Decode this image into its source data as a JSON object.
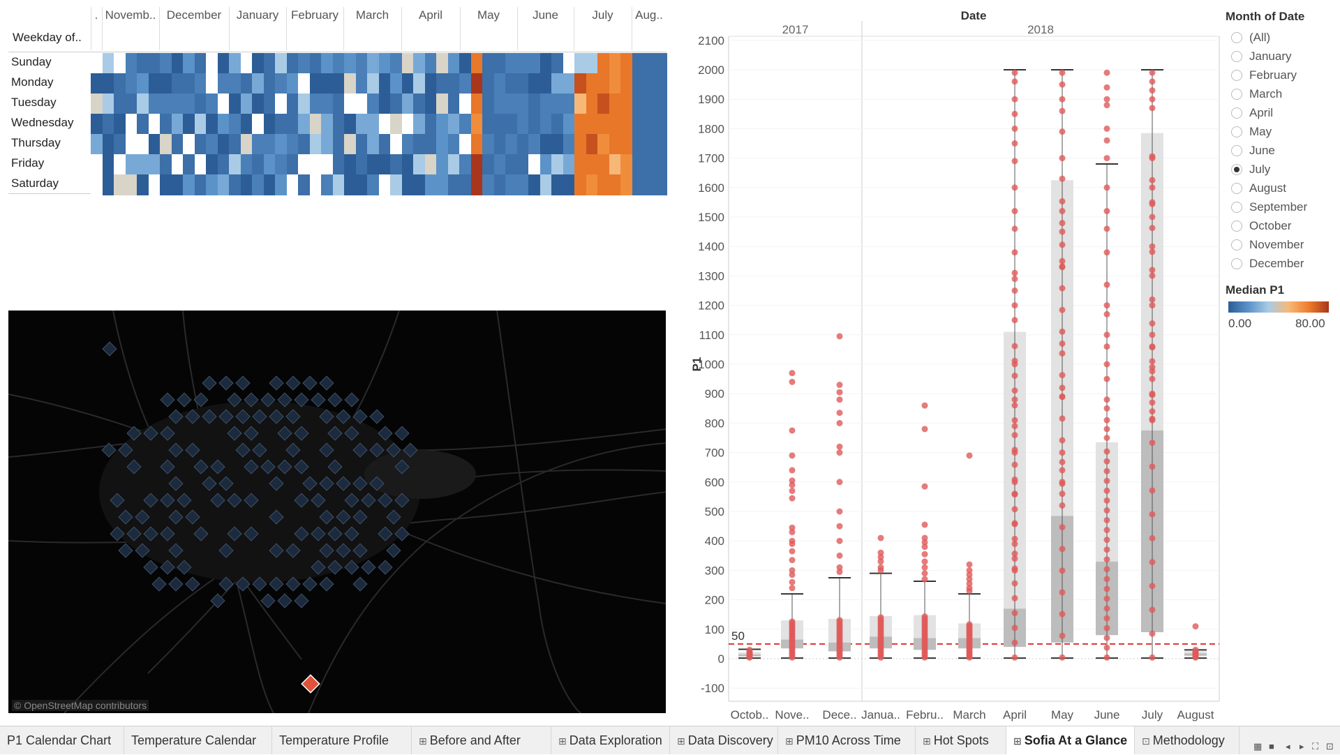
{
  "heatmap": {
    "row_header": "Weekday of..",
    "months": [
      ".",
      "Novemb..",
      "December",
      "January",
      "February",
      "March",
      "April",
      "May",
      "June",
      "July",
      "Aug.."
    ],
    "weekdays": [
      "Sunday",
      "Monday",
      "Tuesday",
      "Wednesday",
      "Thursday",
      "Friday",
      "Saturday"
    ]
  },
  "map": {
    "attribution": "© OpenStreetMap contributors",
    "highlight_marker_color": "#e0523a",
    "marker_color": "#1b2a3d"
  },
  "chart_data": {
    "type": "box",
    "title": "Date",
    "years": [
      "2017",
      "2018"
    ],
    "ylabel": "P1",
    "ylim": [
      -100,
      2100
    ],
    "yticks": [
      -100,
      0,
      100,
      200,
      300,
      400,
      500,
      600,
      700,
      800,
      900,
      1000,
      1100,
      1200,
      1300,
      1400,
      1500,
      1600,
      1700,
      1800,
      1900,
      2000,
      2100
    ],
    "categories": [
      "Octob..",
      "Nove..",
      "Dece..",
      "Janua..",
      "Febru..",
      "March",
      "April",
      "May",
      "June",
      "July",
      "August"
    ],
    "reference_line": {
      "value": 50,
      "label": "50",
      "color": "#e03030"
    },
    "point_color": "#e05a5a",
    "boxes": [
      {
        "q1": 8,
        "median": 15,
        "q3": 22,
        "whisker_low": 2,
        "whisker_high": 32
      },
      {
        "q1": 35,
        "median": 65,
        "q3": 130,
        "whisker_low": 2,
        "whisker_high": 220
      },
      {
        "q1": 25,
        "median": 55,
        "q3": 135,
        "whisker_low": 2,
        "whisker_high": 275
      },
      {
        "q1": 35,
        "median": 75,
        "q3": 145,
        "whisker_low": 2,
        "whisker_high": 290
      },
      {
        "q1": 30,
        "median": 70,
        "q3": 148,
        "whisker_low": 2,
        "whisker_high": 263
      },
      {
        "q1": 35,
        "median": 70,
        "q3": 120,
        "whisker_low": 2,
        "whisker_high": 220
      },
      {
        "q1": 40,
        "median": 170,
        "q3": 1110,
        "whisker_low": 2,
        "whisker_high": 2000
      },
      {
        "q1": 55,
        "median": 485,
        "q3": 1625,
        "whisker_low": 2,
        "whisker_high": 2000
      },
      {
        "q1": 80,
        "median": 330,
        "q3": 735,
        "whisker_low": 2,
        "whisker_high": 1680
      },
      {
        "q1": 90,
        "median": 775,
        "q3": 1785,
        "whisker_low": 2,
        "whisker_high": 2000
      },
      {
        "q1": 10,
        "median": 18,
        "q3": 25,
        "whisker_low": 2,
        "whisker_high": 30
      }
    ],
    "outliers": [
      [
        30,
        25
      ],
      [
        970,
        940,
        775,
        690,
        640,
        605,
        590,
        570,
        545,
        445,
        430,
        400,
        390,
        365,
        335,
        300,
        285,
        260,
        240
      ],
      [
        1095,
        930,
        905,
        880,
        835,
        800,
        720,
        700,
        600,
        500,
        450,
        400,
        350,
        310,
        295
      ],
      [
        410,
        360,
        345,
        330,
        310,
        300
      ],
      [
        860,
        780,
        585,
        455,
        410,
        395,
        380,
        355,
        330,
        310,
        290,
        270
      ],
      [
        690,
        320,
        300,
        285,
        270,
        255,
        240,
        230
      ],
      [
        1990,
        1960,
        1900,
        1850,
        1800,
        1750,
        1690,
        1600,
        1520,
        1460,
        1380,
        1310,
        1290,
        1250,
        1200,
        1150,
        1000,
        880,
        790,
        700,
        600,
        560,
        460,
        390,
        340,
        300
      ],
      [
        1990,
        1950,
        1900,
        1860,
        1790,
        1700,
        1630,
        1520,
        1450,
        1350,
        1330,
        1070,
        920,
        890,
        700,
        640,
        600,
        560
      ],
      [
        1990,
        1940,
        1900,
        1880,
        1800,
        1760,
        1700,
        1600,
        1520,
        1460,
        1380,
        1270,
        1200,
        1170,
        1100,
        1060,
        1000,
        950,
        880,
        850,
        810,
        780,
        750
      ],
      [
        1990,
        1960,
        1930,
        1900,
        1870,
        1700,
        1600,
        1550,
        1500,
        1400,
        1320,
        1200,
        1100,
        1060,
        1010,
        990,
        950,
        900,
        870,
        840,
        810
      ],
      [
        110,
        30,
        20
      ]
    ]
  },
  "legend": {
    "filter_title": "Month of Date",
    "options": [
      "(All)",
      "January",
      "February",
      "March",
      "April",
      "May",
      "June",
      "July",
      "August",
      "September",
      "October",
      "November",
      "December"
    ],
    "selected": "July",
    "color_title": "Median P1",
    "color_min": "0.00",
    "color_max": "80.00",
    "gradient_colors": [
      "#2c5d96",
      "#5b93c9",
      "#a9cbe6",
      "#f7b877",
      "#ef7d2c",
      "#a8361a"
    ]
  },
  "tabs": [
    {
      "label": "P1 Calendar Chart",
      "icon": ""
    },
    {
      "label": "Temperature Calendar",
      "icon": ""
    },
    {
      "label": "Temperature Profile",
      "icon": ""
    },
    {
      "label": "Before and After",
      "icon": "⊞"
    },
    {
      "label": "Data Exploration",
      "icon": "⊞"
    },
    {
      "label": "Data Discovery",
      "icon": "⊞"
    },
    {
      "label": "PM10 Across Time",
      "icon": "⊞"
    },
    {
      "label": "Hot Spots",
      "icon": "⊞"
    },
    {
      "label": "Sofia At a Glance",
      "icon": "⊞"
    },
    {
      "label": "Methodology",
      "icon": "⊡"
    }
  ],
  "active_tab": "Sofia At a Glance"
}
